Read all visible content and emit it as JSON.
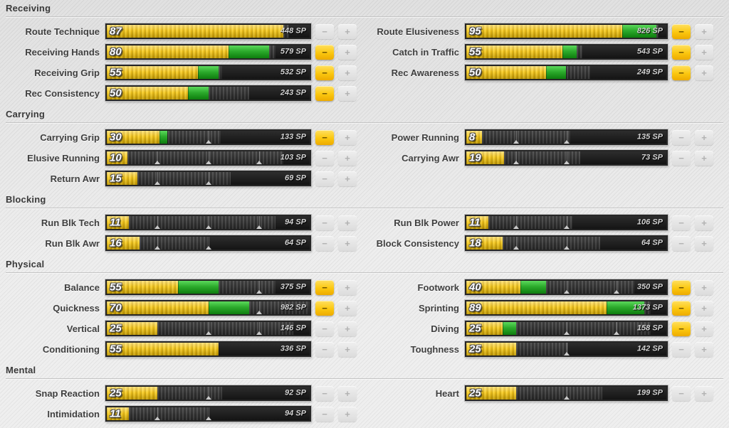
{
  "page": {
    "sp_suffix": "SP"
  },
  "controls": {
    "minus_label": "−",
    "plus_label": "+"
  },
  "colors": {
    "bar_current": "#f7cb1e",
    "bar_bonus": "#2cab2c",
    "bar_potential": "#3b3b3b",
    "bar_empty": "#161616",
    "button_enabled": "#fbc70f",
    "button_disabled": "#e4e4e4",
    "label_text": "#3f3f3f",
    "sp_text": "#d2d2d2"
  },
  "sections": [
    {
      "title": "Receiving",
      "left": [
        {
          "label": "Route Technique",
          "value": 87,
          "base": 87,
          "cap": 90,
          "sp": 448,
          "minus_enabled": false,
          "plus_enabled": false,
          "markers": []
        },
        {
          "label": "Receiving Hands",
          "value": 80,
          "base": 60,
          "cap": 83,
          "sp": 579,
          "minus_enabled": true,
          "plus_enabled": false,
          "markers": []
        },
        {
          "label": "Receiving Grip",
          "value": 55,
          "base": 45,
          "cap": 57,
          "sp": 532,
          "minus_enabled": true,
          "plus_enabled": false,
          "markers": []
        },
        {
          "label": "Rec Consistency",
          "value": 50,
          "base": 40,
          "cap": 70,
          "sp": 243,
          "minus_enabled": true,
          "plus_enabled": false,
          "markers": []
        }
      ],
      "right": [
        {
          "label": "Route Elusiveness",
          "value": 95,
          "base": 78,
          "cap": 96,
          "sp": 826,
          "minus_enabled": true,
          "plus_enabled": false,
          "markers": []
        },
        {
          "label": "Catch in Traffic",
          "value": 55,
          "base": 48,
          "cap": 58,
          "sp": 543,
          "minus_enabled": true,
          "plus_enabled": false,
          "markers": []
        },
        {
          "label": "Rec Awareness",
          "value": 50,
          "base": 40,
          "cap": 62,
          "sp": 249,
          "minus_enabled": true,
          "plus_enabled": false,
          "markers": []
        }
      ]
    },
    {
      "title": "Carrying",
      "left": [
        {
          "label": "Carrying Grip",
          "value": 30,
          "base": 26,
          "cap": 56,
          "sp": 133,
          "minus_enabled": true,
          "plus_enabled": false,
          "markers": [
            50
          ]
        },
        {
          "label": "Elusive Running",
          "value": 10,
          "base": 10,
          "cap": 87,
          "sp": 103,
          "minus_enabled": false,
          "plus_enabled": false,
          "markers": [
            25,
            50,
            75
          ]
        },
        {
          "label": "Return Awr",
          "value": 15,
          "base": 15,
          "cap": 61,
          "sp": 69,
          "minus_enabled": false,
          "plus_enabled": false,
          "markers": [
            25,
            50
          ]
        }
      ],
      "right": [
        {
          "label": "Power Running",
          "value": 8,
          "base": 8,
          "cap": 52,
          "sp": 135,
          "minus_enabled": false,
          "plus_enabled": false,
          "markers": [
            25,
            50
          ]
        },
        {
          "label": "Carrying Awr",
          "value": 19,
          "base": 19,
          "cap": 57,
          "sp": 73,
          "minus_enabled": false,
          "plus_enabled": false,
          "markers": [
            25,
            50
          ]
        }
      ]
    },
    {
      "title": "Blocking",
      "left": [
        {
          "label": "Run Blk Tech",
          "value": 11,
          "base": 11,
          "cap": 83,
          "sp": 94,
          "minus_enabled": false,
          "plus_enabled": false,
          "markers": [
            25,
            50,
            75
          ]
        },
        {
          "label": "Run Blk Awr",
          "value": 16,
          "base": 16,
          "cap": 50,
          "sp": 64,
          "minus_enabled": false,
          "plus_enabled": false,
          "markers": [
            25,
            50
          ]
        }
      ],
      "right": [
        {
          "label": "Run Blk Power",
          "value": 11,
          "base": 11,
          "cap": 53,
          "sp": 106,
          "minus_enabled": false,
          "plus_enabled": false,
          "markers": [
            25,
            50
          ]
        },
        {
          "label": "Block Consistency",
          "value": 18,
          "base": 18,
          "cap": 67,
          "sp": 64,
          "minus_enabled": false,
          "plus_enabled": false,
          "markers": [
            25,
            50
          ]
        }
      ]
    },
    {
      "title": "Physical",
      "left": [
        {
          "label": "Balance",
          "value": 55,
          "base": 35,
          "cap": 83,
          "sp": 375,
          "minus_enabled": true,
          "plus_enabled": false,
          "markers": [
            75
          ]
        },
        {
          "label": "Quickness",
          "value": 70,
          "base": 50,
          "cap": 100,
          "sp": 982,
          "minus_enabled": true,
          "plus_enabled": false,
          "markers": [
            75
          ]
        },
        {
          "label": "Vertical",
          "value": 25,
          "base": 25,
          "cap": 92,
          "sp": 146,
          "minus_enabled": false,
          "plus_enabled": false,
          "markers": [
            50,
            75
          ]
        },
        {
          "label": "Conditioning",
          "value": 55,
          "base": 55,
          "cap": 55,
          "sp": 336,
          "minus_enabled": false,
          "plus_enabled": false,
          "markers": []
        }
      ],
      "right": [
        {
          "label": "Footwork",
          "value": 40,
          "base": 27,
          "cap": 84,
          "sp": 350,
          "minus_enabled": true,
          "plus_enabled": false,
          "markers": [
            50,
            75
          ]
        },
        {
          "label": "Sprinting",
          "value": 89,
          "base": 70,
          "cap": 92,
          "sp": 1373,
          "minus_enabled": true,
          "plus_enabled": false,
          "markers": []
        },
        {
          "label": "Diving",
          "value": 25,
          "base": 18,
          "cap": 92,
          "sp": 158,
          "minus_enabled": true,
          "plus_enabled": false,
          "markers": [
            50,
            75
          ]
        },
        {
          "label": "Toughness",
          "value": 25,
          "base": 25,
          "cap": 51,
          "sp": 142,
          "minus_enabled": false,
          "plus_enabled": false,
          "markers": [
            50
          ]
        }
      ]
    },
    {
      "title": "Mental",
      "left": [
        {
          "label": "Snap Reaction",
          "value": 25,
          "base": 25,
          "cap": 57,
          "sp": 92,
          "minus_enabled": false,
          "plus_enabled": false,
          "markers": [
            50
          ]
        },
        {
          "label": "Intimidation",
          "value": 11,
          "base": 11,
          "cap": 50,
          "sp": 94,
          "minus_enabled": false,
          "plus_enabled": false,
          "markers": [
            25,
            50
          ]
        }
      ],
      "right": [
        {
          "label": "Heart",
          "value": 25,
          "base": 25,
          "cap": 68,
          "sp": 199,
          "minus_enabled": false,
          "plus_enabled": false,
          "markers": [
            50
          ]
        }
      ]
    }
  ]
}
